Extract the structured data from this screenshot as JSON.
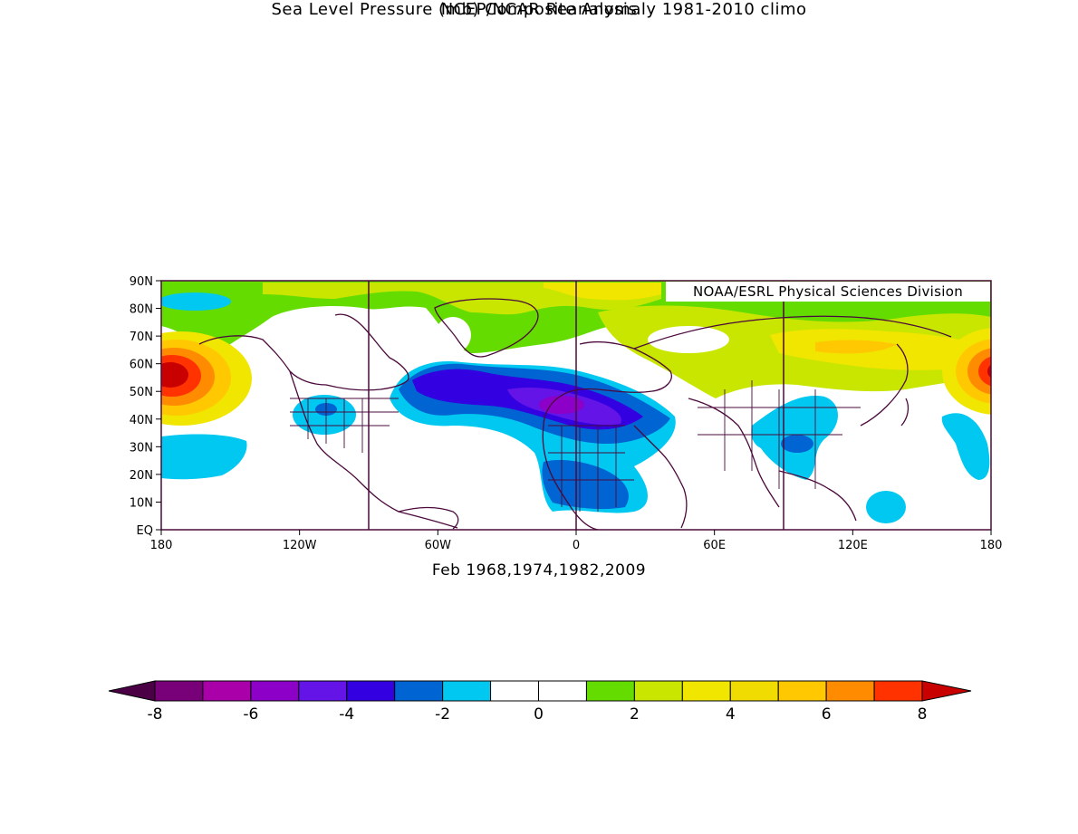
{
  "header": {
    "title": "NCEP/NCAR Reanalysis",
    "subtitle": "Sea Level Pressure (mb) Composite Anomaly 1981-2010 climo"
  },
  "credit": "NOAA/ESRL Physical Sciences Division",
  "footer": "Feb 1968,1974,1982,2009",
  "map": {
    "lat_range": [
      0,
      90
    ],
    "lon_range": [
      -180,
      180
    ],
    "lat_ticks": [
      "EQ",
      "10N",
      "20N",
      "30N",
      "40N",
      "50N",
      "60N",
      "70N",
      "80N",
      "90N"
    ],
    "lat_tick_values": [
      0,
      10,
      20,
      30,
      40,
      50,
      60,
      70,
      80,
      90
    ],
    "lon_ticks": [
      "180",
      "120W",
      "60W",
      "0",
      "60E",
      "120E",
      "180"
    ],
    "lon_tick_values": [
      -180,
      -120,
      -60,
      0,
      60,
      120,
      180
    ],
    "reference_meridians": [
      -90,
      0,
      90
    ],
    "anomaly_blobs": [
      {
        "lon": -175,
        "lat": 55,
        "value": 6
      },
      {
        "lon": -175,
        "lat": 55,
        "value": 8
      },
      {
        "lon": 178,
        "lat": 56,
        "value": 6
      },
      {
        "lon": 178,
        "lat": 57,
        "value": 8
      },
      {
        "lon": -40,
        "lat": 85,
        "value": 2
      },
      {
        "lon": 10,
        "lat": 83,
        "value": 3
      },
      {
        "lon": 120,
        "lat": 63,
        "value": 3
      },
      {
        "lon": 130,
        "lat": 61,
        "value": 4
      },
      {
        "lon": -25,
        "lat": 45,
        "value": -3
      },
      {
        "lon": 0,
        "lat": 43,
        "value": -4
      },
      {
        "lon": -55,
        "lat": 48,
        "value": -4
      },
      {
        "lon": 10,
        "lat": 40,
        "value": -5
      },
      {
        "lon": 95,
        "lat": 35,
        "value": -2
      },
      {
        "lon": -105,
        "lat": 42,
        "value": -2
      },
      {
        "lon": 15,
        "lat": 15,
        "value": -2
      },
      {
        "lon": 140,
        "lat": 8,
        "value": -2
      }
    ]
  },
  "colorbar": {
    "levels": [
      -8,
      -7,
      -6,
      -5,
      -4,
      -3,
      -2,
      -1,
      0,
      1,
      2,
      3,
      4,
      5,
      6,
      7,
      8
    ],
    "tick_labels": [
      "-8",
      "-6",
      "-4",
      "-2",
      "0",
      "2",
      "4",
      "6",
      "8"
    ],
    "tick_values": [
      -8,
      -6,
      -4,
      -2,
      0,
      2,
      4,
      6,
      8
    ],
    "colors": [
      "#4b0046",
      "#780078",
      "#aa00aa",
      "#8c00c8",
      "#6414e6",
      "#3200e1",
      "#0064d2",
      "#00c8f0",
      "#ffffff",
      "#ffffff",
      "#64dc00",
      "#c8e600",
      "#f0e600",
      "#f0dc00",
      "#ffc800",
      "#ff8c00",
      "#ff3200",
      "#c80000"
    ]
  }
}
